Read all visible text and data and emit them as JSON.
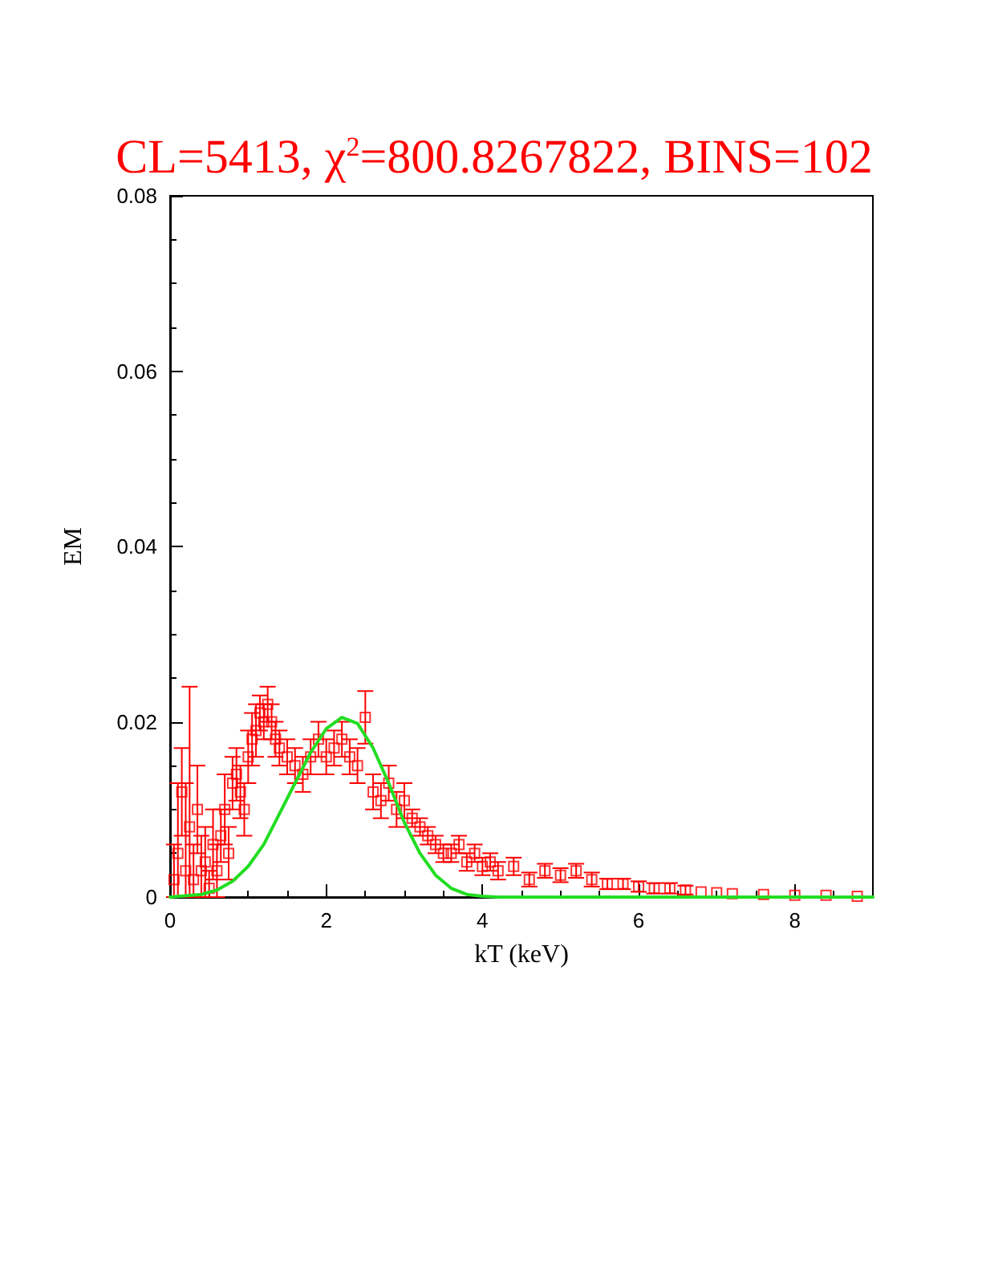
{
  "chart_data": {
    "type": "scatter",
    "title": "CL=5413, χ$^{2}$=800.8267822, BINS=102",
    "xlabel": "kT (keV)",
    "ylabel": "EM",
    "xlim": [
      0,
      9
    ],
    "xticks": [
      0,
      2,
      4,
      6,
      8
    ],
    "ylim": [
      0,
      0.08
    ],
    "yticks": [
      0,
      0.02,
      0.04,
      0.06,
      0.08
    ],
    "grid": false,
    "marker": "square",
    "series": [
      {
        "color": "#ff0000",
        "x": [
          0.05,
          0.1,
          0.15,
          0.2,
          0.25,
          0.3,
          0.35,
          0.4,
          0.45,
          0.5,
          0.55,
          0.6,
          0.65,
          0.7,
          0.75,
          0.8,
          0.85,
          0.9,
          0.95,
          1.0,
          1.05,
          1.1,
          1.15,
          1.2,
          1.25,
          1.3,
          1.35,
          1.4,
          1.5,
          1.6,
          1.7,
          1.8,
          1.9,
          2.0,
          2.1,
          2.2,
          2.3,
          2.4,
          2.5,
          2.6,
          2.7,
          2.8,
          2.9,
          3.0,
          3.1,
          3.2,
          3.3,
          3.4,
          3.5,
          3.6,
          3.7,
          3.8,
          3.9,
          4.0,
          4.1,
          4.2,
          4.4,
          4.6,
          4.8,
          5.0,
          5.2,
          5.4,
          5.6,
          5.8,
          6.0,
          6.2,
          6.4,
          6.6,
          6.8,
          7.0,
          7.2,
          7.6,
          8.0,
          8.4,
          8.8
        ],
        "values": [
          0.002,
          0.005,
          0.012,
          0.003,
          0.008,
          0.002,
          0.01,
          0.003,
          0.004,
          0.001,
          0.006,
          0.003,
          0.007,
          0.01,
          0.005,
          0.013,
          0.014,
          0.012,
          0.01,
          0.016,
          0.018,
          0.019,
          0.021,
          0.02,
          0.022,
          0.02,
          0.018,
          0.017,
          0.016,
          0.015,
          0.014,
          0.016,
          0.018,
          0.016,
          0.017,
          0.018,
          0.016,
          0.015,
          0.0205,
          0.012,
          0.011,
          0.013,
          0.01,
          0.011,
          0.009,
          0.008,
          0.007,
          0.006,
          0.005,
          0.005,
          0.006,
          0.004,
          0.005,
          0.0035,
          0.004,
          0.003,
          0.0035,
          0.002,
          0.003,
          0.0025,
          0.003,
          0.002,
          0.0015,
          0.0015,
          0.0012,
          0.001,
          0.001,
          0.0008,
          0.0006,
          0.0005,
          0.0004,
          0.0003,
          0.0002,
          0.0002,
          0.0001
        ],
        "errors": [
          [
            0,
            0.006
          ],
          [
            0,
            0.013
          ],
          0.005,
          [
            0,
            0.013
          ],
          [
            0,
            0.024
          ],
          [
            0,
            0.006
          ],
          0.005,
          [
            0,
            0.007
          ],
          0.004,
          [
            0,
            0.003
          ],
          0.004,
          0.003,
          0.003,
          0.004,
          0.003,
          0.003,
          0.003,
          0.003,
          0.003,
          0.003,
          0.003,
          0.003,
          0.002,
          0.002,
          0.002,
          0.002,
          0.002,
          0.002,
          0.002,
          0.002,
          0.002,
          0.002,
          0.002,
          0.002,
          0.002,
          0.002,
          0.002,
          0.002,
          0.003,
          0.002,
          0.002,
          0.002,
          0.002,
          0.002,
          0.001,
          0.001,
          0.001,
          0.001,
          0.001,
          0.001,
          0.001,
          0.001,
          0.001,
          0.001,
          0.001,
          0.001,
          0.001,
          0.0008,
          0.0008,
          0.0008,
          0.0008,
          0.0008,
          0.0006,
          0.0006,
          0.0006,
          0.0006,
          0.0006,
          0.0005,
          null,
          null,
          null,
          null,
          null,
          null,
          null
        ]
      },
      {
        "type": "line",
        "color": "#22dd22",
        "marker": "none",
        "line_style": "solid",
        "x": [
          0,
          0.4,
          0.6,
          0.8,
          1.0,
          1.2,
          1.4,
          1.6,
          1.8,
          2.0,
          2.2,
          2.4,
          2.6,
          2.8,
          3.0,
          3.2,
          3.4,
          3.6,
          3.8,
          4.0,
          4.2,
          9
        ],
        "values": [
          0,
          0.0003,
          0.0008,
          0.0018,
          0.0035,
          0.006,
          0.0095,
          0.013,
          0.0165,
          0.0192,
          0.0205,
          0.0198,
          0.017,
          0.013,
          0.0085,
          0.005,
          0.0025,
          0.001,
          0.0003,
          0.0001,
          0,
          0
        ]
      }
    ]
  }
}
